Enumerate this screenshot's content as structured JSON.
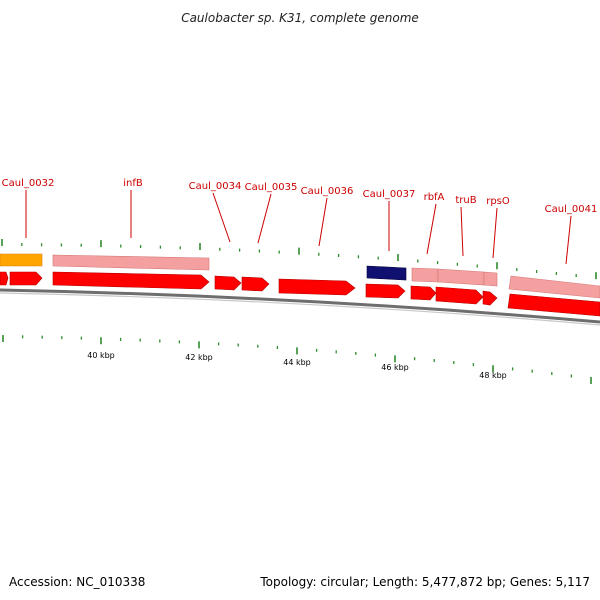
{
  "title": "Caulobacter sp. K31, complete genome",
  "footer": {
    "accession": "Accession: NC_010338",
    "topology": "Topology: circular; Length: 5,477,872 bp; Genes: 5,117"
  },
  "colors": {
    "cds": "#ff0000",
    "cds_light": "#f08080",
    "rna": "#ff8c00",
    "special": "#0a0a7a",
    "label": "#cc0000",
    "tick": "#2e8b2e",
    "backbone": "#808080"
  },
  "ticks": [
    {
      "label": "40 kbp"
    },
    {
      "label": "42 kbp"
    },
    {
      "label": "44 kbp"
    },
    {
      "label": "46 kbp"
    },
    {
      "label": "48 kbp"
    }
  ],
  "gene_labels": [
    {
      "name": "Caul_0032"
    },
    {
      "name": "infB"
    },
    {
      "name": "Caul_0034"
    },
    {
      "name": "Caul_0035"
    },
    {
      "name": "Caul_0036"
    },
    {
      "name": "Caul_0037"
    },
    {
      "name": "rbfA"
    },
    {
      "name": "truB"
    },
    {
      "name": "rpsO"
    },
    {
      "name": "Caul_0041"
    }
  ]
}
